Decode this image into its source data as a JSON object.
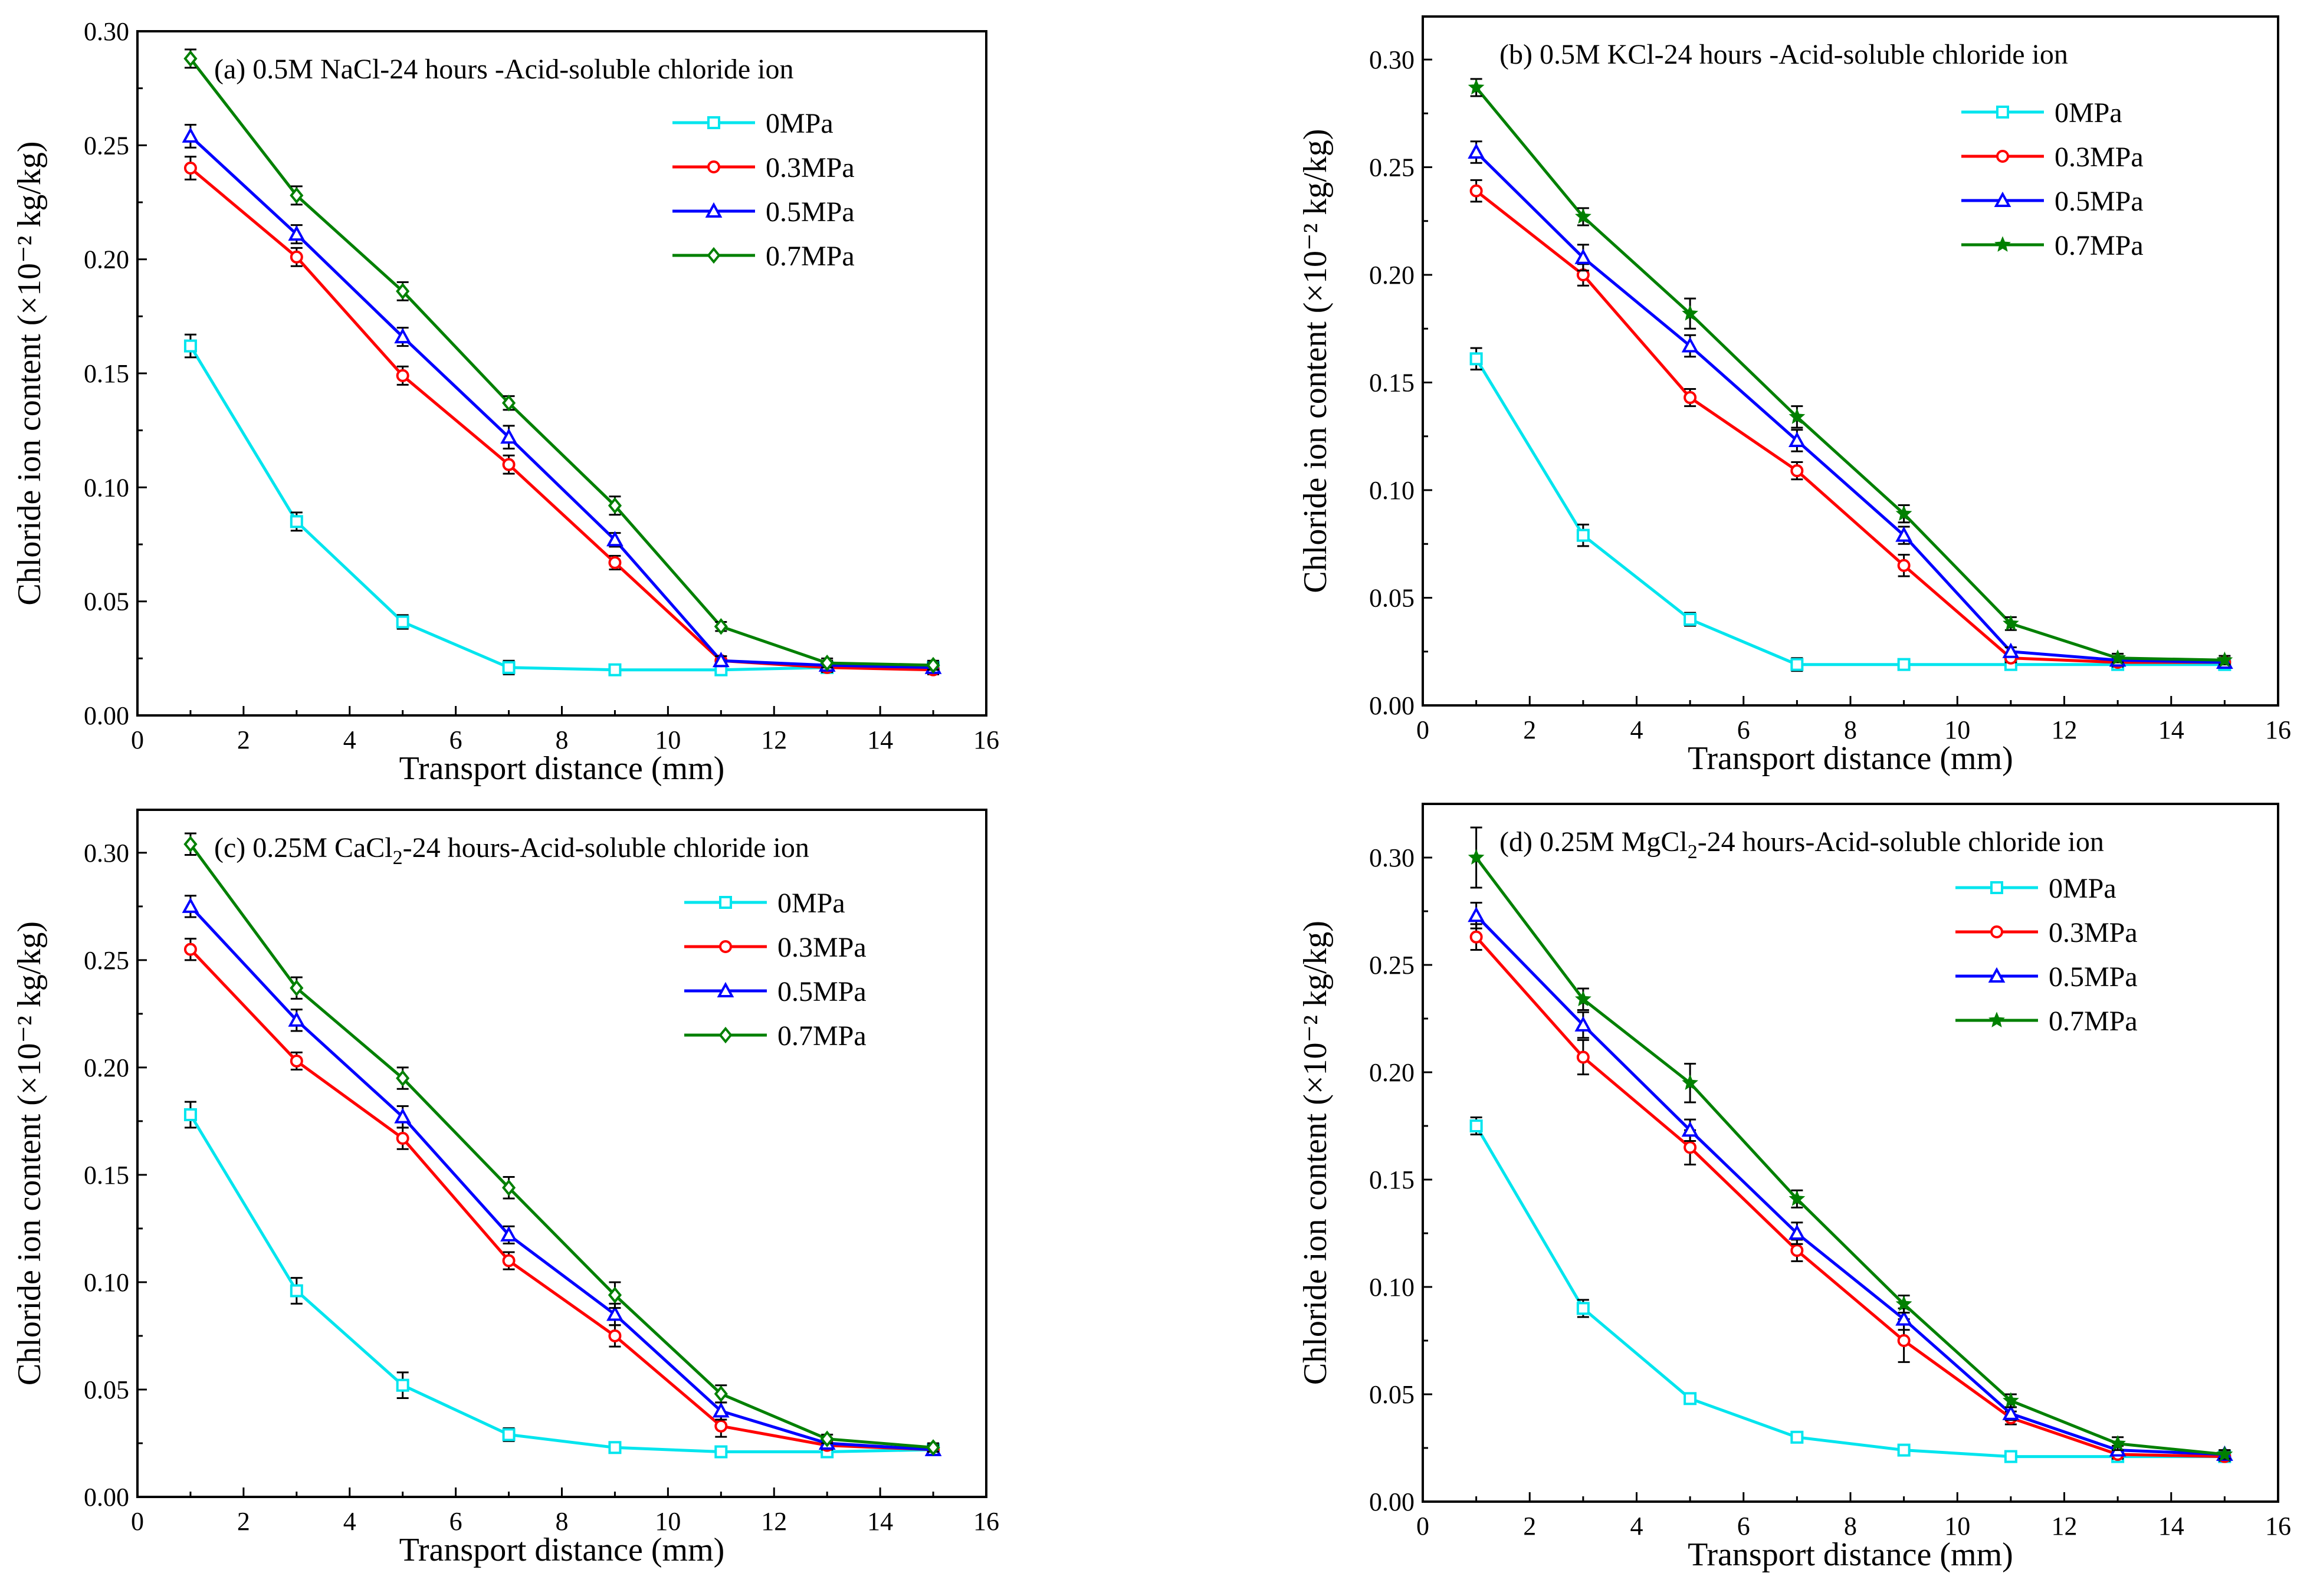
{
  "chart_data": [
    {
      "type": "line",
      "label": "(a)",
      "title": "0.5M NaCl-24 hours -Acid-soluble chloride ion",
      "title_sub": "",
      "title_tail": "",
      "xlabel": "Transport distance (mm)",
      "ylabel": "Chloride ion content (×10⁻² kg/kg)",
      "xlim": [
        0,
        16
      ],
      "ylim": [
        0,
        0.3
      ],
      "xticks": [
        "0",
        "2",
        "4",
        "6",
        "8",
        "10",
        "12",
        "14",
        "16"
      ],
      "yticks": [
        "0.00",
        "0.05",
        "0.10",
        "0.15",
        "0.20",
        "0.25",
        "0.30"
      ],
      "x": [
        1,
        3,
        5,
        7,
        9,
        11,
        13,
        15
      ],
      "series": [
        {
          "name": "0MPa",
          "color": "#00e5ee",
          "marker": "square",
          "values": [
            0.162,
            0.085,
            0.041,
            0.021,
            0.02,
            0.02,
            0.021,
            0.021
          ],
          "errors": [
            0.005,
            0.004,
            0.003,
            0.003,
            0.002,
            0.002,
            0.002,
            0.002
          ]
        },
        {
          "name": "0.3MPa",
          "color": "#ff0000",
          "marker": "circle",
          "values": [
            0.24,
            0.201,
            0.149,
            0.11,
            0.067,
            0.024,
            0.021,
            0.02
          ],
          "errors": [
            0.005,
            0.004,
            0.004,
            0.004,
            0.003,
            0.002,
            0.002,
            0.002
          ]
        },
        {
          "name": "0.5MPa",
          "color": "#0000ff",
          "marker": "triangle",
          "values": [
            0.254,
            0.211,
            0.166,
            0.122,
            0.077,
            0.024,
            0.022,
            0.021
          ],
          "errors": [
            0.005,
            0.004,
            0.004,
            0.005,
            0.003,
            0.002,
            0.002,
            0.002
          ]
        },
        {
          "name": "0.7MPa",
          "color": "#008000",
          "marker": "diamond",
          "values": [
            0.288,
            0.228,
            0.186,
            0.137,
            0.092,
            0.039,
            0.023,
            0.022
          ],
          "errors": [
            0.004,
            0.004,
            0.004,
            0.003,
            0.004,
            0.002,
            0.002,
            0.002
          ]
        }
      ]
    },
    {
      "type": "line",
      "label": "(b)",
      "title": "0.5M KCl-24 hours -Acid-soluble chloride ion",
      "title_sub": "",
      "title_tail": "",
      "xlabel": "Transport distance (mm)",
      "ylabel": "Chloride ion content (×10⁻² kg/kg)",
      "xlim": [
        0,
        16
      ],
      "ylim": [
        0,
        0.32
      ],
      "xticks": [
        "0",
        "2",
        "4",
        "6",
        "8",
        "10",
        "12",
        "14",
        "16"
      ],
      "yticks": [
        "0.00",
        "0.05",
        "0.10",
        "0.15",
        "0.20",
        "0.25",
        "0.30"
      ],
      "x": [
        1,
        3,
        5,
        7,
        9,
        11,
        13,
        15
      ],
      "series": [
        {
          "name": "0MPa",
          "color": "#00e5ee",
          "marker": "square",
          "values": [
            0.161,
            0.079,
            0.04,
            0.019,
            0.019,
            0.019,
            0.019,
            0.019
          ],
          "errors": [
            0.005,
            0.005,
            0.003,
            0.003,
            0.001,
            0.002,
            0.002,
            0.002
          ]
        },
        {
          "name": "0.3MPa",
          "color": "#ff0000",
          "marker": "circle",
          "values": [
            0.239,
            0.2,
            0.143,
            0.109,
            0.065,
            0.022,
            0.02,
            0.02
          ],
          "errors": [
            0.005,
            0.005,
            0.004,
            0.004,
            0.005,
            0.002,
            0.002,
            0.002
          ]
        },
        {
          "name": "0.5MPa",
          "color": "#0000ff",
          "marker": "triangle",
          "values": [
            0.257,
            0.208,
            0.167,
            0.123,
            0.079,
            0.025,
            0.021,
            0.02
          ],
          "errors": [
            0.005,
            0.006,
            0.005,
            0.005,
            0.004,
            0.002,
            0.002,
            0.002
          ]
        },
        {
          "name": "0.7MPa",
          "color": "#008000",
          "marker": "star",
          "values": [
            0.287,
            0.227,
            0.182,
            0.134,
            0.089,
            0.038,
            0.022,
            0.021
          ],
          "errors": [
            0.004,
            0.004,
            0.007,
            0.005,
            0.004,
            0.003,
            0.002,
            0.002
          ]
        }
      ]
    },
    {
      "type": "line",
      "label": "(c)",
      "title": "0.25M CaCl",
      "title_sub": "2",
      "title_tail": "-24 hours-Acid-soluble chloride ion",
      "xlabel": "Transport distance (mm)",
      "ylabel": "Chloride ion content (×10⁻² kg/kg)",
      "xlim": [
        0,
        16
      ],
      "ylim": [
        0,
        0.32
      ],
      "xticks": [
        "0",
        "2",
        "4",
        "6",
        "8",
        "10",
        "12",
        "14",
        "16"
      ],
      "yticks": [
        "0.00",
        "0.05",
        "0.10",
        "0.15",
        "0.20",
        "0.25",
        "0.30"
      ],
      "x": [
        1,
        3,
        5,
        7,
        9,
        11,
        13,
        15
      ],
      "series": [
        {
          "name": "0MPa",
          "color": "#00e5ee",
          "marker": "square",
          "values": [
            0.178,
            0.096,
            0.052,
            0.029,
            0.023,
            0.021,
            0.021,
            0.022
          ],
          "errors": [
            0.006,
            0.006,
            0.006,
            0.003,
            0.002,
            0.002,
            0.002,
            0.002
          ]
        },
        {
          "name": "0.3MPa",
          "color": "#ff0000",
          "marker": "circle",
          "values": [
            0.255,
            0.203,
            0.167,
            0.11,
            0.075,
            0.033,
            0.024,
            0.022
          ],
          "errors": [
            0.005,
            0.004,
            0.005,
            0.004,
            0.005,
            0.005,
            0.002,
            0.002
          ]
        },
        {
          "name": "0.5MPa",
          "color": "#0000ff",
          "marker": "triangle",
          "values": [
            0.275,
            0.222,
            0.177,
            0.122,
            0.085,
            0.04,
            0.025,
            0.022
          ],
          "errors": [
            0.005,
            0.005,
            0.005,
            0.004,
            0.005,
            0.004,
            0.002,
            0.002
          ]
        },
        {
          "name": "0.7MPa",
          "color": "#008000",
          "marker": "diamond",
          "values": [
            0.304,
            0.237,
            0.195,
            0.144,
            0.094,
            0.048,
            0.027,
            0.023
          ],
          "errors": [
            0.005,
            0.005,
            0.005,
            0.005,
            0.006,
            0.004,
            0.002,
            0.002
          ]
        }
      ]
    },
    {
      "type": "line",
      "label": "(d)",
      "title": "0.25M MgCl",
      "title_sub": "2",
      "title_tail": "-24 hours-Acid-soluble chloride ion",
      "xlabel": "Transport distance (mm)",
      "ylabel": "Chloride ion content (×10⁻² kg/kg)",
      "xlim": [
        0,
        16
      ],
      "ylim": [
        0,
        0.325
      ],
      "xticks": [
        "0",
        "2",
        "4",
        "6",
        "8",
        "10",
        "12",
        "14",
        "16"
      ],
      "yticks": [
        "0.00",
        "0.05",
        "0.10",
        "0.15",
        "0.20",
        "0.25",
        "0.30"
      ],
      "x": [
        1,
        3,
        5,
        7,
        9,
        11,
        13,
        15
      ],
      "series": [
        {
          "name": "0MPa",
          "color": "#00e5ee",
          "marker": "square",
          "values": [
            0.175,
            0.09,
            0.048,
            0.03,
            0.024,
            0.021,
            0.021,
            0.021
          ],
          "errors": [
            0.004,
            0.004,
            0.002,
            0.002,
            0.001,
            0.001,
            0.002,
            0.001
          ]
        },
        {
          "name": "0.3MPa",
          "color": "#ff0000",
          "marker": "circle",
          "values": [
            0.263,
            0.207,
            0.165,
            0.117,
            0.075,
            0.039,
            0.022,
            0.021
          ],
          "errors": [
            0.006,
            0.008,
            0.008,
            0.005,
            0.01,
            0.003,
            0.002,
            0.002
          ]
        },
        {
          "name": "0.5MPa",
          "color": "#0000ff",
          "marker": "triangle",
          "values": [
            0.273,
            0.222,
            0.173,
            0.125,
            0.085,
            0.041,
            0.024,
            0.022
          ],
          "errors": [
            0.006,
            0.006,
            0.005,
            0.005,
            0.005,
            0.003,
            0.002,
            0.002
          ]
        },
        {
          "name": "0.7MPa",
          "color": "#008000",
          "marker": "star",
          "values": [
            0.3,
            0.234,
            0.195,
            0.141,
            0.092,
            0.047,
            0.027,
            0.022
          ],
          "errors": [
            0.014,
            0.005,
            0.009,
            0.004,
            0.004,
            0.003,
            0.003,
            0.002
          ]
        }
      ]
    }
  ]
}
